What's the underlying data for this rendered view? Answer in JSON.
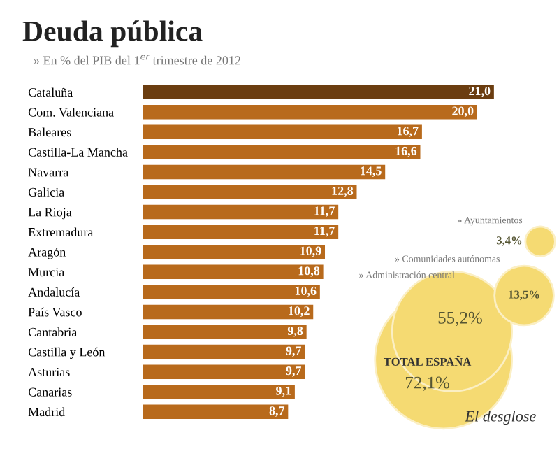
{
  "chart_data": [
    {
      "type": "bar",
      "orientation": "horizontal",
      "title": "Deuda pública",
      "subtitle": "» En % del PIB del 1$^{er}$ trimestre de 2012",
      "categories": [
        "Cataluña",
        "Com. Valenciana",
        "Baleares",
        "Castilla-La Mancha",
        "Navarra",
        "Galicia",
        "La Rioja",
        "Extremadura",
        "Aragón",
        "Murcia",
        "Andalucía",
        "País Vasco",
        "Cantabria",
        "Castilla y León",
        "Asturias",
        "Canarias",
        "Madrid"
      ],
      "values": [
        21.0,
        20.0,
        16.7,
        16.6,
        14.5,
        12.8,
        11.7,
        11.7,
        10.9,
        10.8,
        10.6,
        10.2,
        9.8,
        9.7,
        9.7,
        9.1,
        8.7
      ],
      "value_labels": [
        "21,0",
        "20,0",
        "16,7",
        "16,6",
        "14,5",
        "12,8",
        "11,7",
        "11,7",
        "10,9",
        "10,8",
        "10,6",
        "10,2",
        "9,8",
        "9,7",
        "9,7",
        "9,1",
        "8,7"
      ],
      "colors": [
        "#6b3d10",
        "#b86a1c",
        "#b86a1c",
        "#b86a1c",
        "#b86a1c",
        "#b86a1c",
        "#b86a1c",
        "#b86a1c",
        "#b86a1c",
        "#b86a1c",
        "#b86a1c",
        "#b86a1c",
        "#b86a1c",
        "#b86a1c",
        "#b86a1c",
        "#b86a1c",
        "#b86a1c"
      ],
      "tick_labels": "y",
      "grid": false,
      "legend": false
    },
    {
      "type": "other",
      "title": "El desglose",
      "categories": [
        "TOTAL ESPAÑA",
        "» Administración central",
        "» Comunidades autónomas",
        "» Ayuntamientos"
      ],
      "values": [
        72.1,
        55.2,
        13.5,
        3.4
      ],
      "value_labels": [
        "72,1%",
        "55,2%",
        "13,5%",
        "3,4%"
      ],
      "color": "#f5da72"
    }
  ]
}
